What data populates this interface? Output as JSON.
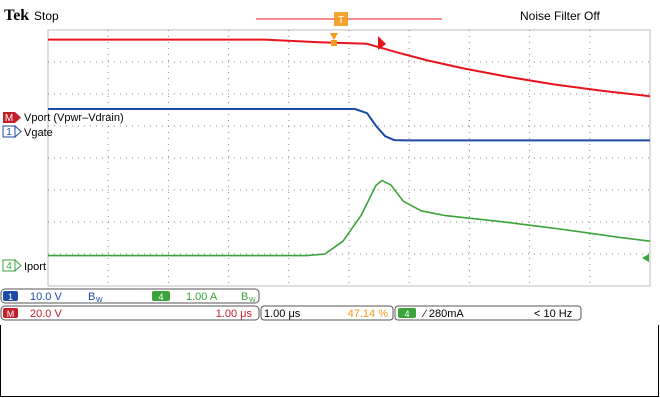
{
  "header": {
    "brand": "Tek",
    "run_state": "Stop",
    "noise_filter": "Noise Filter Off",
    "trigger_marker_label": "T"
  },
  "channels": {
    "m_tag": "M",
    "m_label": "Vport (Vpwr–Vdrain)",
    "ch1_tag": "1",
    "ch1_label": "Vgate",
    "ch4_tag": "4",
    "ch4_label": "Iport"
  },
  "readouts": {
    "ch1_scale": "10.0 V",
    "ch1_bw": "B",
    "ch1_bw_sub": "W",
    "ch4_tag": "4",
    "ch4_scale": "1.00 A",
    "ch4_bw": "B",
    "ch4_bw_sub": "W",
    "m_tag": "M",
    "m_scale": "20.0 V",
    "m_time": "1.00 μs",
    "timebase": "1.00 μs",
    "trigger_pos": "47.14 %",
    "trig_ch": "4",
    "trig_level": "∕ 280mA",
    "trig_freq": "< 10 Hz"
  },
  "colors": {
    "math": "#e8141c",
    "ch1": "#1d4aa8",
    "ch4": "#3aa33a",
    "trigger": "#f59a1a",
    "grid_dots": "#8a8a8a",
    "dark_tag": "#c0202a"
  },
  "chart_data": {
    "type": "line",
    "title": "",
    "xlabel": "",
    "ylabel": "",
    "grid": true,
    "xlim": [
      0,
      10
    ],
    "ylim": [
      -4,
      4
    ],
    "series": [
      {
        "name": "Vport (Vpwr–Vdrain)",
        "color": "#e8141c",
        "x": [
          0,
          3.6,
          4.5,
          5.3,
          5.8,
          6.3,
          6.9,
          7.6,
          8.4,
          9.2,
          10.0
        ],
        "y": [
          3.7,
          3.7,
          3.62,
          3.57,
          3.3,
          3.05,
          2.8,
          2.55,
          2.3,
          2.1,
          1.93
        ]
      },
      {
        "name": "Vgate",
        "color": "#1d4aa8",
        "x": [
          0,
          5.1,
          5.3,
          5.45,
          5.6,
          5.75,
          5.95,
          10.0
        ],
        "y": [
          1.53,
          1.53,
          1.4,
          1.0,
          0.68,
          0.56,
          0.55,
          0.55
        ]
      },
      {
        "name": "Iport",
        "color": "#3aa33a",
        "x": [
          0,
          4.3,
          4.6,
          4.9,
          5.2,
          5.45,
          5.55,
          5.7,
          5.9,
          6.2,
          6.6,
          7.0,
          7.5,
          8.0,
          8.5,
          9.0,
          9.5,
          10.0
        ],
        "y": [
          -3.05,
          -3.05,
          -3.0,
          -2.6,
          -1.8,
          -0.85,
          -0.7,
          -0.85,
          -1.35,
          -1.65,
          -1.8,
          -1.88,
          -1.98,
          -2.1,
          -2.22,
          -2.35,
          -2.48,
          -2.6
        ]
      }
    ]
  }
}
